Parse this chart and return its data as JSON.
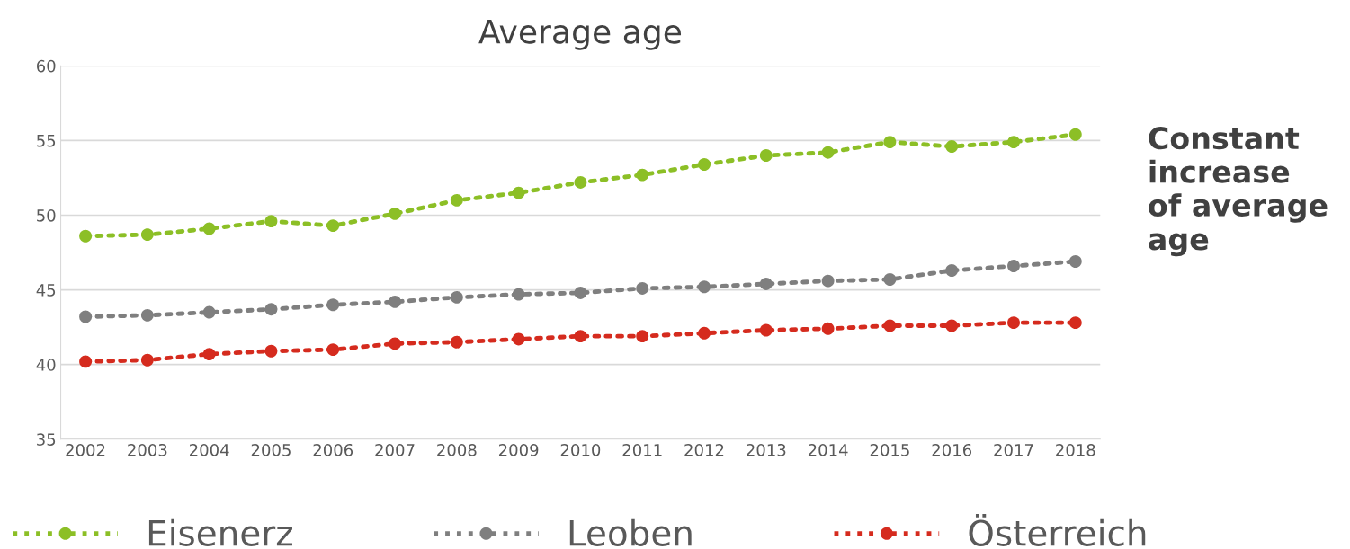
{
  "chart_data": {
    "type": "line",
    "title": "Average age",
    "categories": [
      "2002",
      "2003",
      "2004",
      "2005",
      "2006",
      "2007",
      "2008",
      "2009",
      "2010",
      "2011",
      "2012",
      "2013",
      "2014",
      "2015",
      "2016",
      "2017",
      "2018"
    ],
    "series": [
      {
        "name": "Eisenerz",
        "color": "#8cbf26",
        "values": [
          48.6,
          48.7,
          49.1,
          49.6,
          49.3,
          50.1,
          51.0,
          51.5,
          52.2,
          52.7,
          53.4,
          54.0,
          54.2,
          54.9,
          54.6,
          54.9,
          55.4
        ]
      },
      {
        "name": "Leoben",
        "color": "#7f7f7f",
        "values": [
          43.2,
          43.3,
          43.5,
          43.7,
          44.0,
          44.2,
          44.5,
          44.7,
          44.8,
          45.1,
          45.2,
          45.4,
          45.6,
          45.7,
          46.3,
          46.6,
          46.9
        ]
      },
      {
        "name": "Österreich",
        "color": "#d52b1e",
        "values": [
          40.2,
          40.3,
          40.7,
          40.9,
          41.0,
          41.4,
          41.5,
          41.7,
          41.9,
          41.9,
          42.1,
          42.3,
          42.4,
          42.6,
          42.6,
          42.8,
          42.8
        ]
      }
    ],
    "ylim": [
      35,
      60
    ],
    "yticks": [
      35,
      40,
      45,
      50,
      55,
      60
    ],
    "grid": "y",
    "legend": "bottom",
    "marker": "circle",
    "line_style": "dotted",
    "annotations": [
      "Constant\nincrease\nof average\nage"
    ]
  }
}
